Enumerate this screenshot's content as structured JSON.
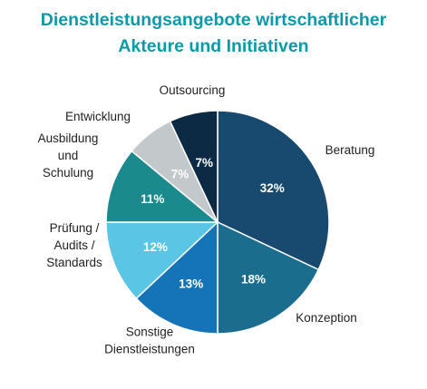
{
  "title_lines": [
    "Dienstleistungsangebote wirtschaftlicher",
    "Akteure und Initiativen"
  ],
  "chart_data": {
    "type": "pie",
    "title": "Dienstleistungsangebote wirtschaftlicher Akteure und Initiativen",
    "slices": [
      {
        "label": "Beratung",
        "value": 32,
        "value_label": "32%",
        "color": "#174a6e",
        "text_color": "#ffffff",
        "label_lines": [
          "Beratung"
        ]
      },
      {
        "label": "Konzeption",
        "value": 18,
        "value_label": "18%",
        "color": "#1a6d8c",
        "text_color": "#ffffff",
        "label_lines": [
          "Konzeption"
        ]
      },
      {
        "label": "Sonstige Dienstleistungen",
        "value": 13,
        "value_label": "13%",
        "color": "#1474b7",
        "text_color": "#ffffff",
        "label_lines": [
          "Sonstige",
          "Dienstleistungen"
        ]
      },
      {
        "label": "Prüfung / Audits / Standards",
        "value": 12,
        "value_label": "12%",
        "color": "#5bc5e6",
        "text_color": "#ffffff",
        "label_lines": [
          "Prüfung /",
          "Audits /",
          "Standards"
        ]
      },
      {
        "label": "Ausbildung und Schulung",
        "value": 11,
        "value_label": "11%",
        "color": "#1a8a8c",
        "text_color": "#ffffff",
        "label_lines": [
          "Ausbildung",
          "und",
          "Schulung"
        ]
      },
      {
        "label": "Entwicklung",
        "value": 7,
        "value_label": "7%",
        "color": "#c3c8cb",
        "text_color": "#ffffff",
        "label_lines": [
          "Entwicklung"
        ]
      },
      {
        "label": "Outsourcing",
        "value": 7,
        "value_label": "7%",
        "color": "#0d2a45",
        "text_color": "#ffffff",
        "label_lines": [
          "Outsourcing"
        ]
      }
    ]
  }
}
